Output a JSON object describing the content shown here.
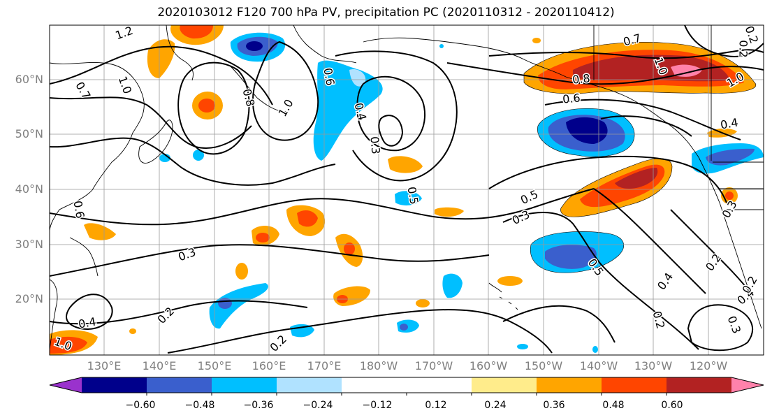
{
  "title": "2020103012 F120 700 hPa PV, precipitation PC (2020110312 - 2020110412)",
  "latitude_labels": [
    "60°N",
    "50°N",
    "40°N",
    "30°N",
    "20°N"
  ],
  "longitude_labels": [
    "130°E",
    "140°E",
    "150°E",
    "160°E",
    "170°E",
    "180°W",
    "170°W",
    "160°W",
    "150°W",
    "140°W",
    "130°W",
    "120°W"
  ],
  "colorbar": {
    "colors": [
      "#9a32cd",
      "#00008b",
      "#3a5fcd",
      "#00bfff",
      "#b0e2ff",
      "#ffffff",
      "#ffffff",
      "#ffec8b",
      "#ffa500",
      "#ff4500",
      "#b22222",
      "#ff82ab"
    ],
    "tick_labels": [
      "−0.60",
      "−0.48",
      "−0.36",
      "−0.24",
      "−0.12",
      "0.12",
      "0.24",
      "0.36",
      "0.48",
      "0.60"
    ]
  },
  "pv_contour_labels": [
    "1.2",
    "0.7",
    "1.0",
    "0.8",
    "1.0",
    "0.6",
    "0.4",
    "0.3",
    "0.5",
    "0.3",
    "0.5",
    "0.3",
    "0.5",
    "0.2",
    "0.4",
    "0.2",
    "0.8",
    "0.6",
    "0.4",
    "1.0",
    "0.4",
    "0.3",
    "0.2",
    "0.2",
    "0.4",
    "0.2",
    "0.3",
    "0.7",
    "1.0",
    "0.2",
    "0.2",
    "0.6",
    "1.0"
  ]
}
